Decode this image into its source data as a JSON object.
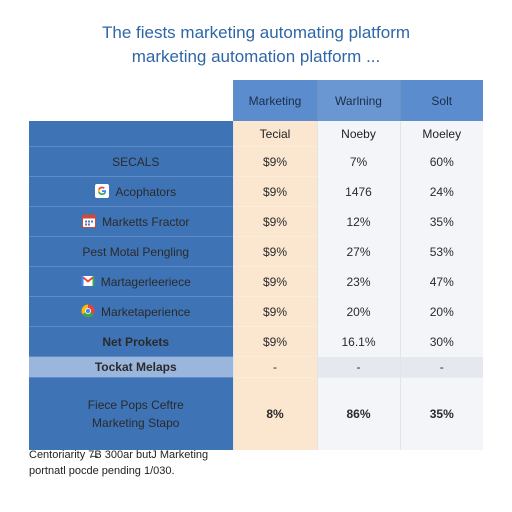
{
  "title_line1": "The fiests marketing automating platform",
  "title_line2": "marketing automation platform ...",
  "columns": [
    "Marketing",
    "Warlning",
    "Solt"
  ],
  "subheaders": [
    "Tecial",
    "Noeby",
    "Moeley"
  ],
  "rows": [
    {
      "label": "SECALS",
      "values": [
        "$9%",
        "7%",
        "60%"
      ]
    },
    {
      "label": "Acophators",
      "icon": "google-icon",
      "values": [
        "$9%",
        "1476",
        "24%"
      ]
    },
    {
      "label": "Marketts Fractor",
      "icon": "calendar-icon",
      "values": [
        "$9%",
        "12%",
        "35%"
      ]
    },
    {
      "label": "Pest Motal Pengling",
      "values": [
        "$9%",
        "27%",
        "53%"
      ]
    },
    {
      "label": "Martagerleeriece",
      "icon": "gmail-icon",
      "values": [
        "$9%",
        "23%",
        "47%"
      ]
    },
    {
      "label": "Marketaperience",
      "icon": "chrome-icon",
      "values": [
        "$9%",
        "20%",
        "20%"
      ]
    },
    {
      "label": "Net Prokets",
      "values": [
        "$9%",
        "16.1%",
        "30%"
      ]
    },
    {
      "label": "Tockat Melaps",
      "values": [
        "-",
        "-",
        "-"
      ]
    },
    {
      "label_line1": "Fiece Pops Ceftre",
      "label_line2": "Marketing Stapo",
      "values": [
        "8%",
        "86%",
        "35%"
      ]
    }
  ],
  "footer_line1": "Centoriarity 7̶̶B 300ar butJ Marketing",
  "footer_line2": "portnatl pocde pending 1/030."
}
